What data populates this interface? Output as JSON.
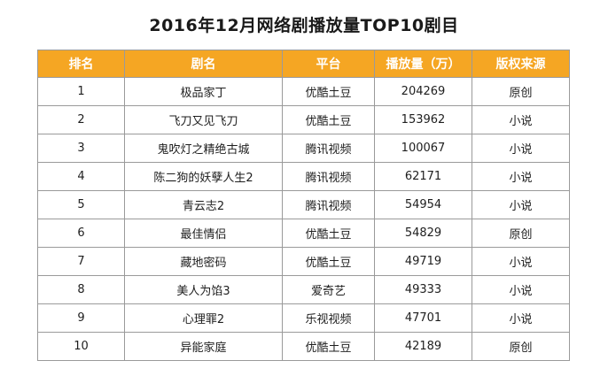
{
  "title": "2016年12月网络剧播放量TOP10剧目",
  "table": {
    "headers": [
      "排名",
      "剧名",
      "平台",
      "播放量（万）",
      "版权来源"
    ],
    "rows": [
      {
        "rank": "1",
        "name": "极品家丁",
        "platform": "优酷土豆",
        "plays": "204269",
        "source": "原创"
      },
      {
        "rank": "2",
        "name": "飞刀又见飞刀",
        "platform": "优酷土豆",
        "plays": "153962",
        "source": "小说"
      },
      {
        "rank": "3",
        "name": "鬼吹灯之精绝古城",
        "platform": "腾讯视频",
        "plays": "100067",
        "source": "小说"
      },
      {
        "rank": "4",
        "name": "陈二狗的妖孽人生2",
        "platform": "腾讯视频",
        "plays": "62171",
        "source": "小说"
      },
      {
        "rank": "5",
        "name": "青云志2",
        "platform": "腾讯视频",
        "plays": "54954",
        "source": "小说"
      },
      {
        "rank": "6",
        "name": "最佳情侣",
        "platform": "优酷土豆",
        "plays": "54829",
        "source": "原创"
      },
      {
        "rank": "7",
        "name": "藏地密码",
        "platform": "优酷土豆",
        "plays": "49719",
        "source": "小说"
      },
      {
        "rank": "8",
        "name": "美人为馅3",
        "platform": "爱奇艺",
        "plays": "49333",
        "source": "小说"
      },
      {
        "rank": "9",
        "name": "心理罪2",
        "platform": "乐视视频",
        "plays": "47701",
        "source": "小说"
      },
      {
        "rank": "10",
        "name": "异能家庭",
        "platform": "优酷土豆",
        "plays": "42189",
        "source": "原创"
      }
    ]
  },
  "colors": {
    "header_bg": "#f5a623",
    "header_text": "#ffffff",
    "border": "#9a9a9a"
  }
}
